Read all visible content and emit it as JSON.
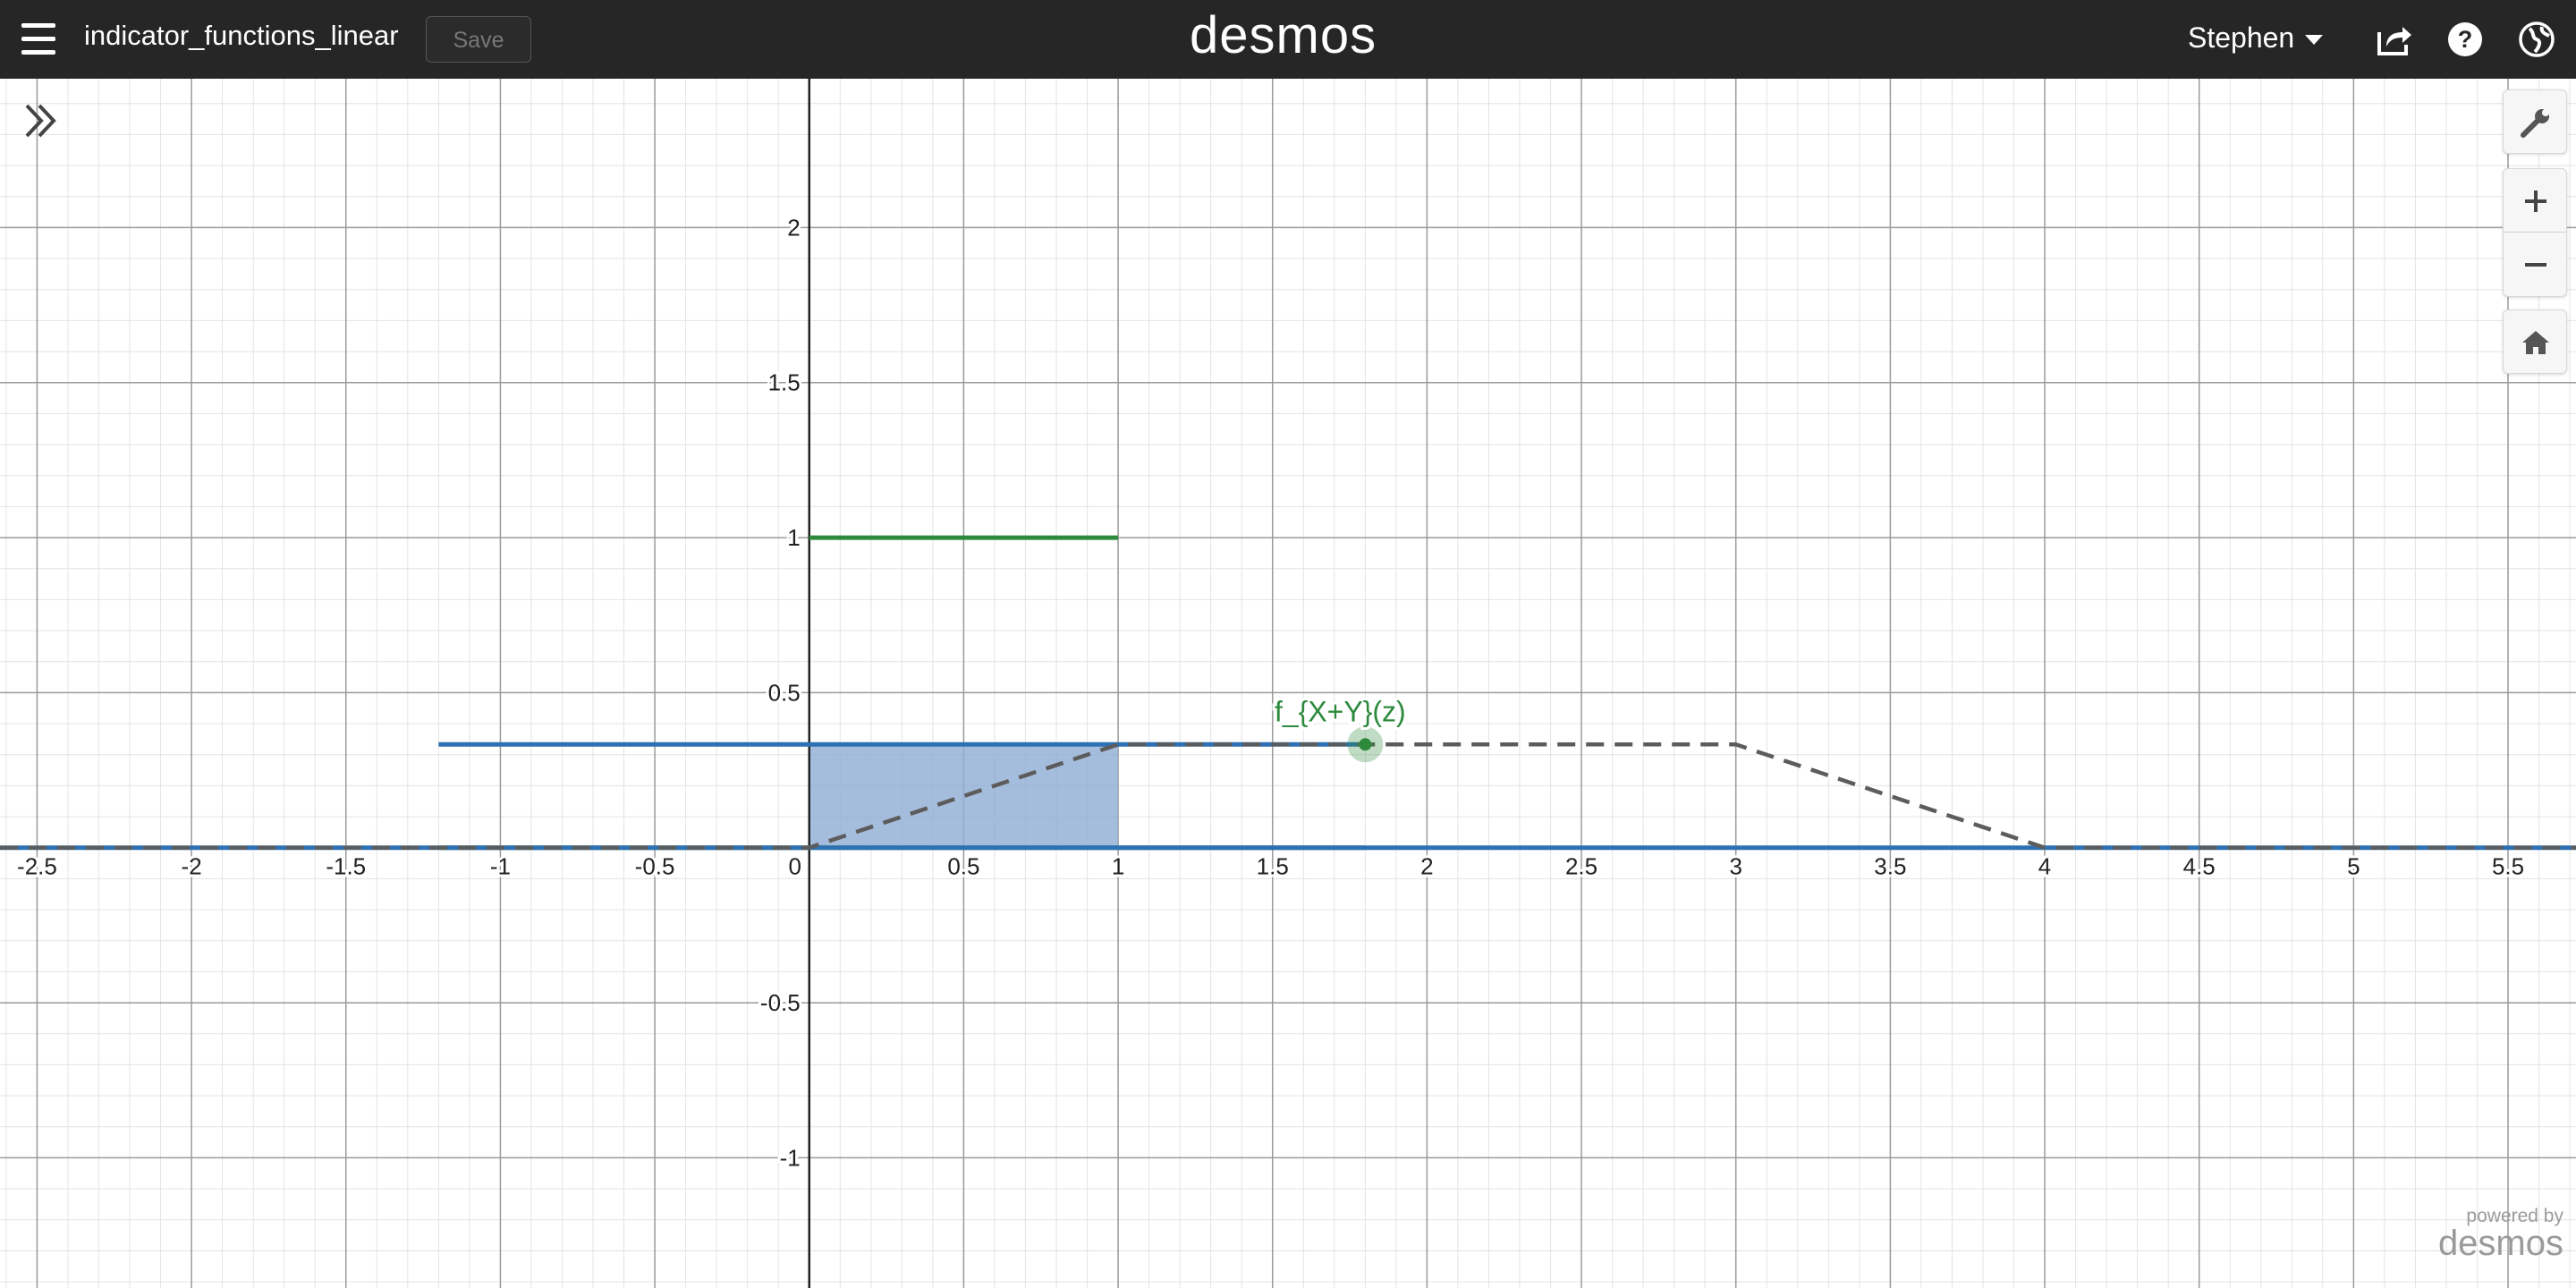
{
  "header": {
    "graph_title": "indicator_functions_linear",
    "save_label": "Save",
    "logo": "desmos",
    "user_name": "Stephen",
    "icons": [
      "menu-icon",
      "share-icon",
      "help-icon",
      "language-globe-icon"
    ]
  },
  "graph_controls": {
    "icons": [
      "expand-expressions-icon",
      "settings-wrench-icon",
      "zoom-in-icon",
      "zoom-out-icon",
      "default-viewport-home-icon"
    ]
  },
  "branding": {
    "powered_by": "powered by",
    "name": "desmos"
  },
  "colors": {
    "green": "#2d8a3c",
    "blue": "#2d70b3",
    "dark": "#5c5c5c",
    "fill": "#8eacd4"
  },
  "chart_data": {
    "type": "line",
    "xlim": [
      -2.62,
      5.72
    ],
    "ylim": [
      -1.42,
      2.48
    ],
    "grid": true,
    "x_ticks": [
      "-2.5",
      "-2",
      "-1.5",
      "-1",
      "-0.5",
      "0",
      "0.5",
      "1",
      "1.5",
      "2",
      "2.5",
      "3",
      "3.5",
      "4",
      "4.5",
      "5",
      "5.5"
    ],
    "y_ticks": [
      "2",
      "1.5",
      "1",
      "0.5",
      "-0.5",
      "-1"
    ],
    "series": [
      {
        "color": "#2d8a3c",
        "style": "solid",
        "segments": [
          [
            [
              0,
              1
            ],
            [
              1,
              1
            ]
          ],
          [
            [
              -1.2,
              0
            ],
            [
              1.8,
              0
            ]
          ]
        ]
      },
      {
        "color": "#2d70b3",
        "style": "solid",
        "segments": [
          [
            [
              -1.2,
              0.333
            ],
            [
              1.8,
              0.333
            ]
          ],
          [
            [
              -2.62,
              0
            ],
            [
              5.72,
              0
            ]
          ]
        ]
      },
      {
        "color": "#5c5c5c",
        "style": "dashed",
        "segments": [
          [
            [
              -2.62,
              0
            ],
            [
              0,
              0
            ],
            [
              1,
              0.333
            ],
            [
              3,
              0.333
            ],
            [
              4,
              0
            ],
            [
              5.72,
              0
            ]
          ]
        ]
      }
    ],
    "shaded_region": {
      "x": [
        0,
        1
      ],
      "y": [
        0,
        0.333
      ],
      "color": "#8eacd4"
    },
    "point": {
      "x": 1.8,
      "y": 0.333,
      "label": "f_{X+Y}(z)",
      "color": "#2d8a3c"
    }
  }
}
